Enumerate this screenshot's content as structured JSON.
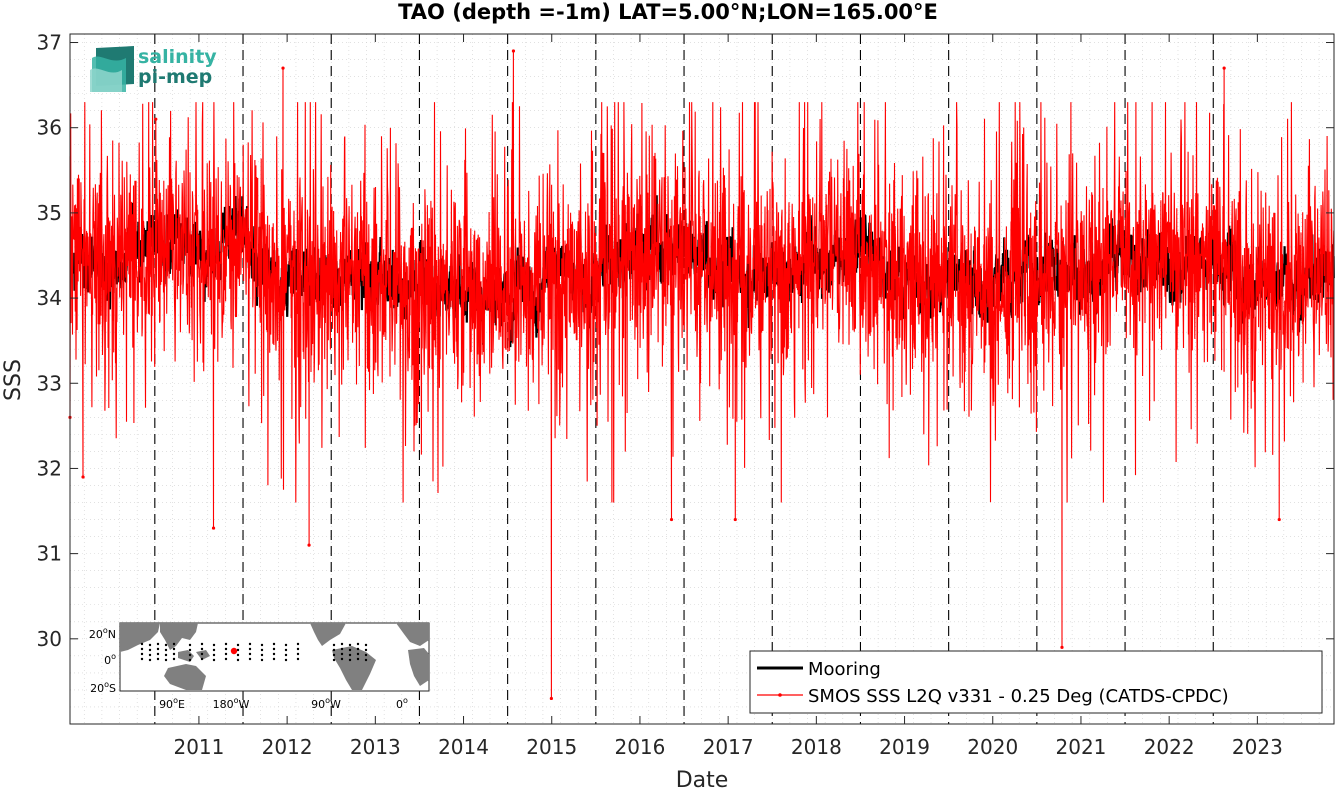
{
  "chart_data": {
    "type": "line",
    "title": "TAO (depth =-1m) LAT=5.00°N;LON=165.00°E",
    "xlabel": "Date",
    "ylabel": "SSS",
    "xlim": [
      "2010-01-15",
      "2024-05-15"
    ],
    "ylim": [
      29.0,
      37.1
    ],
    "x_ticks": [
      "2011",
      "2012",
      "2013",
      "2014",
      "2015",
      "2016",
      "2017",
      "2018",
      "2019",
      "2020",
      "2021",
      "2022",
      "2023"
    ],
    "y_ticks": [
      30,
      31,
      32,
      33,
      34,
      35,
      36,
      37
    ],
    "year_boundaries": [
      "2011",
      "2012",
      "2013",
      "2014",
      "2015",
      "2016",
      "2017",
      "2018",
      "2019",
      "2020",
      "2021",
      "2022",
      "2023"
    ],
    "grid": "minor dotted",
    "legend_position": "bottom-right",
    "series": [
      {
        "name": "Mooring",
        "color": "#000000",
        "data_range": [
          "2010-02-01",
          "2024-05-15"
        ],
        "typical_range": [
          33.9,
          35.0
        ],
        "sample_points": [
          [
            "2010-06-01",
            34.4
          ],
          [
            "2011-01-01",
            34.6
          ],
          [
            "2011-06-01",
            34.5
          ],
          [
            "2012-01-01",
            34.7
          ],
          [
            "2012-06-01",
            34.3
          ],
          [
            "2013-01-01",
            34.3
          ],
          [
            "2013-06-01",
            34.2
          ],
          [
            "2014-01-01",
            34.1
          ],
          [
            "2014-06-01",
            34.2
          ],
          [
            "2015-01-01",
            34.0
          ],
          [
            "2015-06-01",
            34.1
          ],
          [
            "2016-01-01",
            34.3
          ],
          [
            "2016-06-01",
            34.5
          ],
          [
            "2017-01-01",
            34.6
          ],
          [
            "2017-06-01",
            34.2
          ],
          [
            "2018-01-01",
            34.3
          ],
          [
            "2018-06-01",
            34.5
          ],
          [
            "2019-01-01",
            34.4
          ],
          [
            "2019-06-01",
            34.3
          ],
          [
            "2020-01-01",
            34.2
          ],
          [
            "2020-06-01",
            34.1
          ],
          [
            "2021-01-01",
            34.2
          ],
          [
            "2021-06-01",
            34.3
          ],
          [
            "2022-01-01",
            34.4
          ],
          [
            "2022-06-01",
            34.5
          ],
          [
            "2023-01-01",
            34.4
          ],
          [
            "2023-06-01",
            34.1
          ],
          [
            "2024-01-01",
            34.2
          ],
          [
            "2024-05-01",
            34.3
          ]
        ]
      },
      {
        "name": "SMOS SSS L2Q v331 - 0.25 Deg (CATDS-CPDC)",
        "color": "#ff0000",
        "data_range": [
          "2010-01-15",
          "2024-05-15"
        ],
        "typical_range": [
          32.5,
          36.0
        ],
        "notable_points": [
          [
            "2010-01-15",
            32.6
          ],
          [
            "2010-03-10",
            31.9
          ],
          [
            "2011-01-05",
            36.1
          ],
          [
            "2011-09-01",
            31.3
          ],
          [
            "2012-06-15",
            36.7
          ],
          [
            "2012-10-01",
            31.1
          ],
          [
            "2015-01-25",
            36.9
          ],
          [
            "2015-07-01",
            29.3
          ],
          [
            "2016-11-10",
            31.4
          ],
          [
            "2017-08-01",
            31.4
          ],
          [
            "2021-04-15",
            29.9
          ],
          [
            "2023-02-15",
            36.7
          ],
          [
            "2023-10-01",
            31.4
          ]
        ]
      }
    ]
  },
  "logo": {
    "line1": "salinity",
    "line2": "pi-mep"
  },
  "inset_map": {
    "lat_labels": [
      {
        "value": "20",
        "sup": "o",
        "dir": "N"
      },
      {
        "value": "0",
        "sup": "o",
        "dir": ""
      },
      {
        "value": "20",
        "sup": "o",
        "dir": "S"
      }
    ],
    "lon_labels": [
      {
        "value": "90",
        "sup": "o",
        "dir": "E"
      },
      {
        "value": "180",
        "sup": "o",
        "dir": "W"
      },
      {
        "value": "90",
        "sup": "o",
        "dir": "W"
      },
      {
        "value": "0",
        "sup": "o",
        "dir": ""
      }
    ],
    "land_color": "#808080",
    "ocean_color": "#ffffff",
    "marker_color": "#ff0000",
    "marker": {
      "lat": 5.0,
      "lon": 165.0
    }
  },
  "colors": {
    "mooring": "#000000",
    "smos": "#ff0000",
    "logo_dark": "#1f7a72",
    "logo_light": "#36b3a3"
  }
}
